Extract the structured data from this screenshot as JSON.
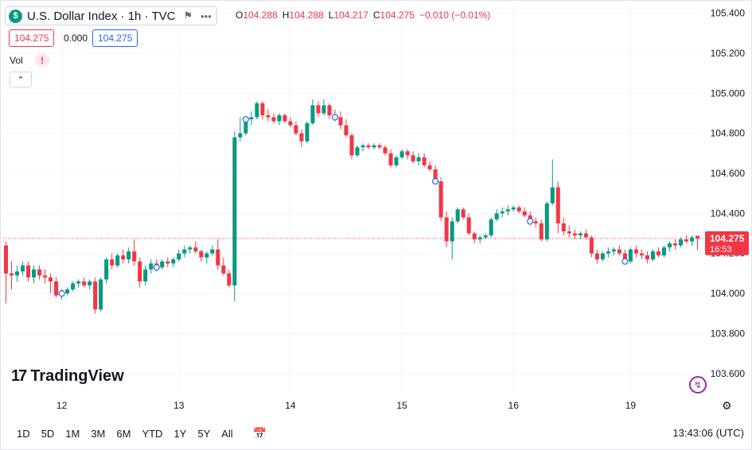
{
  "header": {
    "symbol_icon": "$",
    "symbol_title": "U.S. Dollar Index · 1h · TVC",
    "flag_icon": "flag-icon",
    "more_icon": "more-icon",
    "ohlc": {
      "o_label": "O",
      "o_value": "104.288",
      "h_label": "H",
      "h_value": "104.288",
      "l_label": "L",
      "l_value": "104.217",
      "c_label": "C",
      "c_value": "104.275",
      "change": "−0.010 (−0.01%)"
    },
    "sell_price": "104.275",
    "spread": "0.000",
    "buy_price": "104.275"
  },
  "volume": {
    "label": "Vol",
    "warning": "!"
  },
  "collapse_icon": "chevron-up-icon",
  "brand": {
    "name": "TradingView"
  },
  "current_price": {
    "value": "104.275",
    "countdown": "16:53"
  },
  "footer": {
    "ranges": [
      "1D",
      "5D",
      "1M",
      "3M",
      "6M",
      "YTD",
      "1Y",
      "5Y",
      "All"
    ],
    "time": "13:43:06 (UTC)"
  },
  "colors": {
    "up": "#089981",
    "down": "#f23645",
    "grid": "#f0f3fa",
    "marker": "#2962ff"
  },
  "chart_data": {
    "type": "candlestick",
    "title": "U.S. Dollar Index · 1h · TVC",
    "ylim": [
      103.5,
      105.45
    ],
    "yticks": [
      105.4,
      105.2,
      105.0,
      104.8,
      104.6,
      104.4,
      104.2,
      104.0,
      103.8,
      103.6
    ],
    "ytick_labels": [
      "105.400",
      "105.200",
      "105.000",
      "104.800",
      "104.600",
      "104.400",
      "104.200",
      "104.000",
      "103.800",
      "103.600"
    ],
    "xtick_labels": [
      "12",
      "13",
      "14",
      "15",
      "16",
      "19"
    ],
    "xtick_bars": [
      10,
      31,
      51,
      71,
      91,
      112
    ],
    "grid": true,
    "last_price": 104.275,
    "event_markers": [
      10,
      27,
      43,
      59,
      77,
      94,
      111
    ],
    "ohlc": [
      [
        104.24,
        104.26,
        103.95,
        104.1
      ],
      [
        104.1,
        104.16,
        104.02,
        104.09
      ],
      [
        104.09,
        104.14,
        104.06,
        104.11
      ],
      [
        104.11,
        104.16,
        104.09,
        104.14
      ],
      [
        104.14,
        104.16,
        104.06,
        104.08
      ],
      [
        104.08,
        104.14,
        104.05,
        104.12
      ],
      [
        104.12,
        104.14,
        104.07,
        104.09
      ],
      [
        104.09,
        104.12,
        104.05,
        104.08
      ],
      [
        104.08,
        104.1,
        104.0,
        104.06
      ],
      [
        104.06,
        104.08,
        103.98,
        103.99
      ],
      [
        103.99,
        104.02,
        103.97,
        104.0
      ],
      [
        104.0,
        104.03,
        103.99,
        104.02
      ],
      [
        104.02,
        104.06,
        104.01,
        104.05
      ],
      [
        104.05,
        104.07,
        104.03,
        104.06
      ],
      [
        104.06,
        104.08,
        104.03,
        104.04
      ],
      [
        104.04,
        104.07,
        104.02,
        104.06
      ],
      [
        104.06,
        104.08,
        103.9,
        103.92
      ],
      [
        103.92,
        104.08,
        103.91,
        104.07
      ],
      [
        104.07,
        104.18,
        104.05,
        104.17
      ],
      [
        104.17,
        104.2,
        104.12,
        104.14
      ],
      [
        104.14,
        104.2,
        104.13,
        104.19
      ],
      [
        104.19,
        104.22,
        104.15,
        104.17
      ],
      [
        104.17,
        104.23,
        104.15,
        104.21
      ],
      [
        104.21,
        104.27,
        104.14,
        104.16
      ],
      [
        104.16,
        104.18,
        104.03,
        104.06
      ],
      [
        104.06,
        104.14,
        104.04,
        104.12
      ],
      [
        104.12,
        104.17,
        104.1,
        104.15
      ],
      [
        104.15,
        104.17,
        104.11,
        104.13
      ],
      [
        104.13,
        104.17,
        104.12,
        104.16
      ],
      [
        104.16,
        104.18,
        104.13,
        104.15
      ],
      [
        104.15,
        104.18,
        104.13,
        104.17
      ],
      [
        104.17,
        104.22,
        104.16,
        104.2
      ],
      [
        104.2,
        104.24,
        104.18,
        104.22
      ],
      [
        104.22,
        104.24,
        104.2,
        104.23
      ],
      [
        104.23,
        104.26,
        104.2,
        104.21
      ],
      [
        104.21,
        104.22,
        104.16,
        104.18
      ],
      [
        104.18,
        104.21,
        104.15,
        104.2
      ],
      [
        104.2,
        104.24,
        104.19,
        104.22
      ],
      [
        104.22,
        104.27,
        104.12,
        104.14
      ],
      [
        104.14,
        104.18,
        104.09,
        104.1
      ],
      [
        104.1,
        104.12,
        104.03,
        104.04
      ],
      [
        104.04,
        104.81,
        103.96,
        104.78
      ],
      [
        104.78,
        104.88,
        104.76,
        104.8
      ],
      [
        104.8,
        104.88,
        104.79,
        104.87
      ],
      [
        104.87,
        104.91,
        104.84,
        104.88
      ],
      [
        104.88,
        104.96,
        104.87,
        104.95
      ],
      [
        104.95,
        104.96,
        104.87,
        104.89
      ],
      [
        104.89,
        104.92,
        104.86,
        104.88
      ],
      [
        104.88,
        104.9,
        104.85,
        104.86
      ],
      [
        104.86,
        104.9,
        104.84,
        104.89
      ],
      [
        104.89,
        104.9,
        104.85,
        104.86
      ],
      [
        104.86,
        104.88,
        104.83,
        104.84
      ],
      [
        104.84,
        104.86,
        104.79,
        104.8
      ],
      [
        104.8,
        104.82,
        104.73,
        104.76
      ],
      [
        104.76,
        104.86,
        104.75,
        104.85
      ],
      [
        104.85,
        104.97,
        104.84,
        104.94
      ],
      [
        104.94,
        104.96,
        104.88,
        104.9
      ],
      [
        104.9,
        104.97,
        104.89,
        104.94
      ],
      [
        104.94,
        104.95,
        104.87,
        104.89
      ],
      [
        104.89,
        104.92,
        104.86,
        104.88
      ],
      [
        104.88,
        104.91,
        104.82,
        104.84
      ],
      [
        104.84,
        104.87,
        104.78,
        104.79
      ],
      [
        104.79,
        104.8,
        104.67,
        104.69
      ],
      [
        104.69,
        104.74,
        104.68,
        104.73
      ],
      [
        104.73,
        104.75,
        104.71,
        104.74
      ],
      [
        104.74,
        104.75,
        104.72,
        104.73
      ],
      [
        104.73,
        104.75,
        104.72,
        104.74
      ],
      [
        104.74,
        104.75,
        104.72,
        104.73
      ],
      [
        104.73,
        104.74,
        104.69,
        104.7
      ],
      [
        104.7,
        104.72,
        104.63,
        104.64
      ],
      [
        104.64,
        104.69,
        104.63,
        104.68
      ],
      [
        104.68,
        104.72,
        104.67,
        104.71
      ],
      [
        104.71,
        104.72,
        104.67,
        104.69
      ],
      [
        104.69,
        104.71,
        104.65,
        104.66
      ],
      [
        104.66,
        104.7,
        104.64,
        104.68
      ],
      [
        104.68,
        104.7,
        104.63,
        104.64
      ],
      [
        104.64,
        104.66,
        104.61,
        104.62
      ],
      [
        104.62,
        104.64,
        104.55,
        104.56
      ],
      [
        104.56,
        104.58,
        104.36,
        104.38
      ],
      [
        104.38,
        104.41,
        104.23,
        104.26
      ],
      [
        104.26,
        104.38,
        104.17,
        104.36
      ],
      [
        104.36,
        104.43,
        104.35,
        104.42
      ],
      [
        104.42,
        104.43,
        104.37,
        104.38
      ],
      [
        104.38,
        104.4,
        104.29,
        104.3
      ],
      [
        104.3,
        104.31,
        104.25,
        104.27
      ],
      [
        104.27,
        104.29,
        104.25,
        104.28
      ],
      [
        104.28,
        104.3,
        104.27,
        104.29
      ],
      [
        104.29,
        104.38,
        104.28,
        104.37
      ],
      [
        104.37,
        104.42,
        104.36,
        104.4
      ],
      [
        104.4,
        104.43,
        104.38,
        104.41
      ],
      [
        104.41,
        104.44,
        104.39,
        104.42
      ],
      [
        104.42,
        104.44,
        104.41,
        104.43
      ],
      [
        104.43,
        104.44,
        104.4,
        104.41
      ],
      [
        104.41,
        104.43,
        104.38,
        104.39
      ],
      [
        104.39,
        104.41,
        104.34,
        104.36
      ],
      [
        104.36,
        104.38,
        104.33,
        104.35
      ],
      [
        104.35,
        104.37,
        104.26,
        104.27
      ],
      [
        104.27,
        104.46,
        104.26,
        104.45
      ],
      [
        104.45,
        104.67,
        104.44,
        104.53
      ],
      [
        104.53,
        104.56,
        104.3,
        104.35
      ],
      [
        104.35,
        104.38,
        104.29,
        104.31
      ],
      [
        104.31,
        104.34,
        104.28,
        104.3
      ],
      [
        104.3,
        104.32,
        104.27,
        104.29
      ],
      [
        104.29,
        104.31,
        104.27,
        104.3
      ],
      [
        104.3,
        104.32,
        104.27,
        104.28
      ],
      [
        104.28,
        104.29,
        104.18,
        104.2
      ],
      [
        104.2,
        104.22,
        104.15,
        104.17
      ],
      [
        104.17,
        104.21,
        104.16,
        104.2
      ],
      [
        104.2,
        104.23,
        104.18,
        104.21
      ],
      [
        104.21,
        104.23,
        104.19,
        104.22
      ],
      [
        104.22,
        104.24,
        104.19,
        104.2
      ],
      [
        104.2,
        104.22,
        104.15,
        104.16
      ],
      [
        104.16,
        104.23,
        104.15,
        104.22
      ],
      [
        104.22,
        104.24,
        104.18,
        104.2
      ],
      [
        104.2,
        104.22,
        104.17,
        104.19
      ],
      [
        104.19,
        104.21,
        104.15,
        104.17
      ],
      [
        104.17,
        104.22,
        104.16,
        104.21
      ],
      [
        104.21,
        104.23,
        104.18,
        104.19
      ],
      [
        104.19,
        104.24,
        104.18,
        104.23
      ],
      [
        104.23,
        104.26,
        104.21,
        104.25
      ],
      [
        104.25,
        104.27,
        104.22,
        104.24
      ],
      [
        104.24,
        104.28,
        104.23,
        104.27
      ],
      [
        104.27,
        104.29,
        104.25,
        104.26
      ],
      [
        104.26,
        104.29,
        104.24,
        104.28
      ],
      [
        104.288,
        104.288,
        104.217,
        104.275
      ]
    ]
  }
}
